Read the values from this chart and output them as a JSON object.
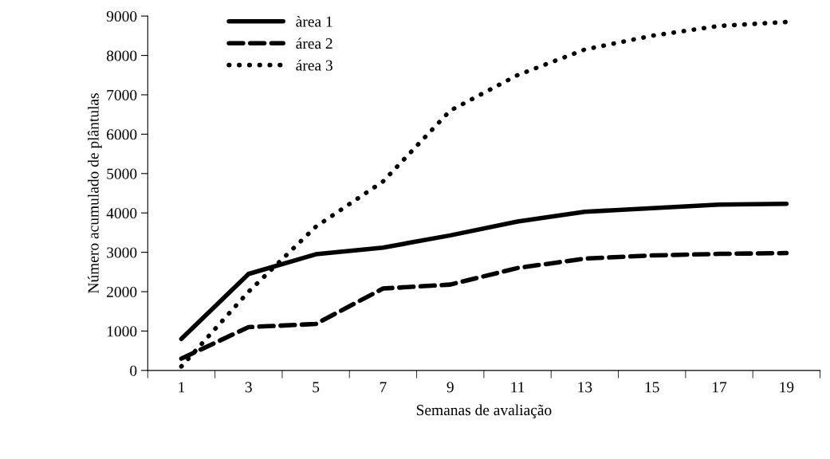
{
  "chart_data": {
    "type": "line",
    "xlabel": "Semanas de avaliação",
    "ylabel": "Número acumulado de plântulas",
    "categories": [
      "1",
      "3",
      "5",
      "7",
      "9",
      "11",
      "13",
      "15",
      "17",
      "19"
    ],
    "series": [
      {
        "name": "àrea 1",
        "color": "#000000",
        "line_style": "solid",
        "values": [
          800,
          2450,
          2950,
          3120,
          3430,
          3780,
          4030,
          4120,
          4210,
          4230
        ]
      },
      {
        "name": "área 2",
        "color": "#000000",
        "line_style": "dashed",
        "values": [
          300,
          1100,
          1180,
          2080,
          2180,
          2600,
          2840,
          2920,
          2960,
          2980
        ]
      },
      {
        "name": "área 3",
        "color": "#000000",
        "line_style": "dotted",
        "values": [
          100,
          2000,
          3650,
          4800,
          6600,
          7500,
          8150,
          8500,
          8750,
          8850
        ]
      }
    ],
    "ylim": [
      0,
      9000
    ],
    "yticks": [
      0,
      1000,
      2000,
      3000,
      4000,
      5000,
      6000,
      7000,
      8000,
      9000
    ],
    "grid": false,
    "legend": "top left",
    "marker": "none"
  }
}
